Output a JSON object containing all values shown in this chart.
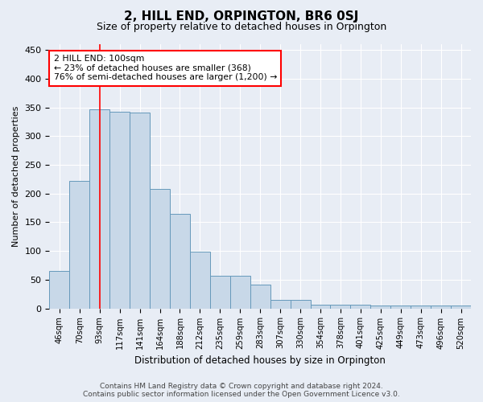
{
  "title": "2, HILL END, ORPINGTON, BR6 0SJ",
  "subtitle": "Size of property relative to detached houses in Orpington",
  "xlabel": "Distribution of detached houses by size in Orpington",
  "ylabel": "Number of detached properties",
  "bar_color": "#c8d8e8",
  "bar_edge_color": "#6699bb",
  "categories": [
    "46sqm",
    "70sqm",
    "93sqm",
    "117sqm",
    "141sqm",
    "164sqm",
    "188sqm",
    "212sqm",
    "235sqm",
    "259sqm",
    "283sqm",
    "307sqm",
    "330sqm",
    "354sqm",
    "378sqm",
    "401sqm",
    "425sqm",
    "449sqm",
    "473sqm",
    "496sqm",
    "520sqm"
  ],
  "values": [
    65,
    222,
    347,
    343,
    341,
    208,
    165,
    99,
    57,
    57,
    42,
    15,
    15,
    7,
    7,
    7,
    5,
    5,
    5,
    5,
    5
  ],
  "annotation_line1": "2 HILL END: 100sqm",
  "annotation_line2": "← 23% of detached houses are smaller (368)",
  "annotation_line3": "76% of semi-detached houses are larger (1,200) →",
  "red_line_x": 2.0,
  "ylim": [
    0,
    460
  ],
  "yticks": [
    0,
    50,
    100,
    150,
    200,
    250,
    300,
    350,
    400,
    450
  ],
  "footer1": "Contains HM Land Registry data © Crown copyright and database right 2024.",
  "footer2": "Contains public sector information licensed under the Open Government Licence v3.0.",
  "background_color": "#e8edf5",
  "plot_bg_color": "#e8edf5"
}
